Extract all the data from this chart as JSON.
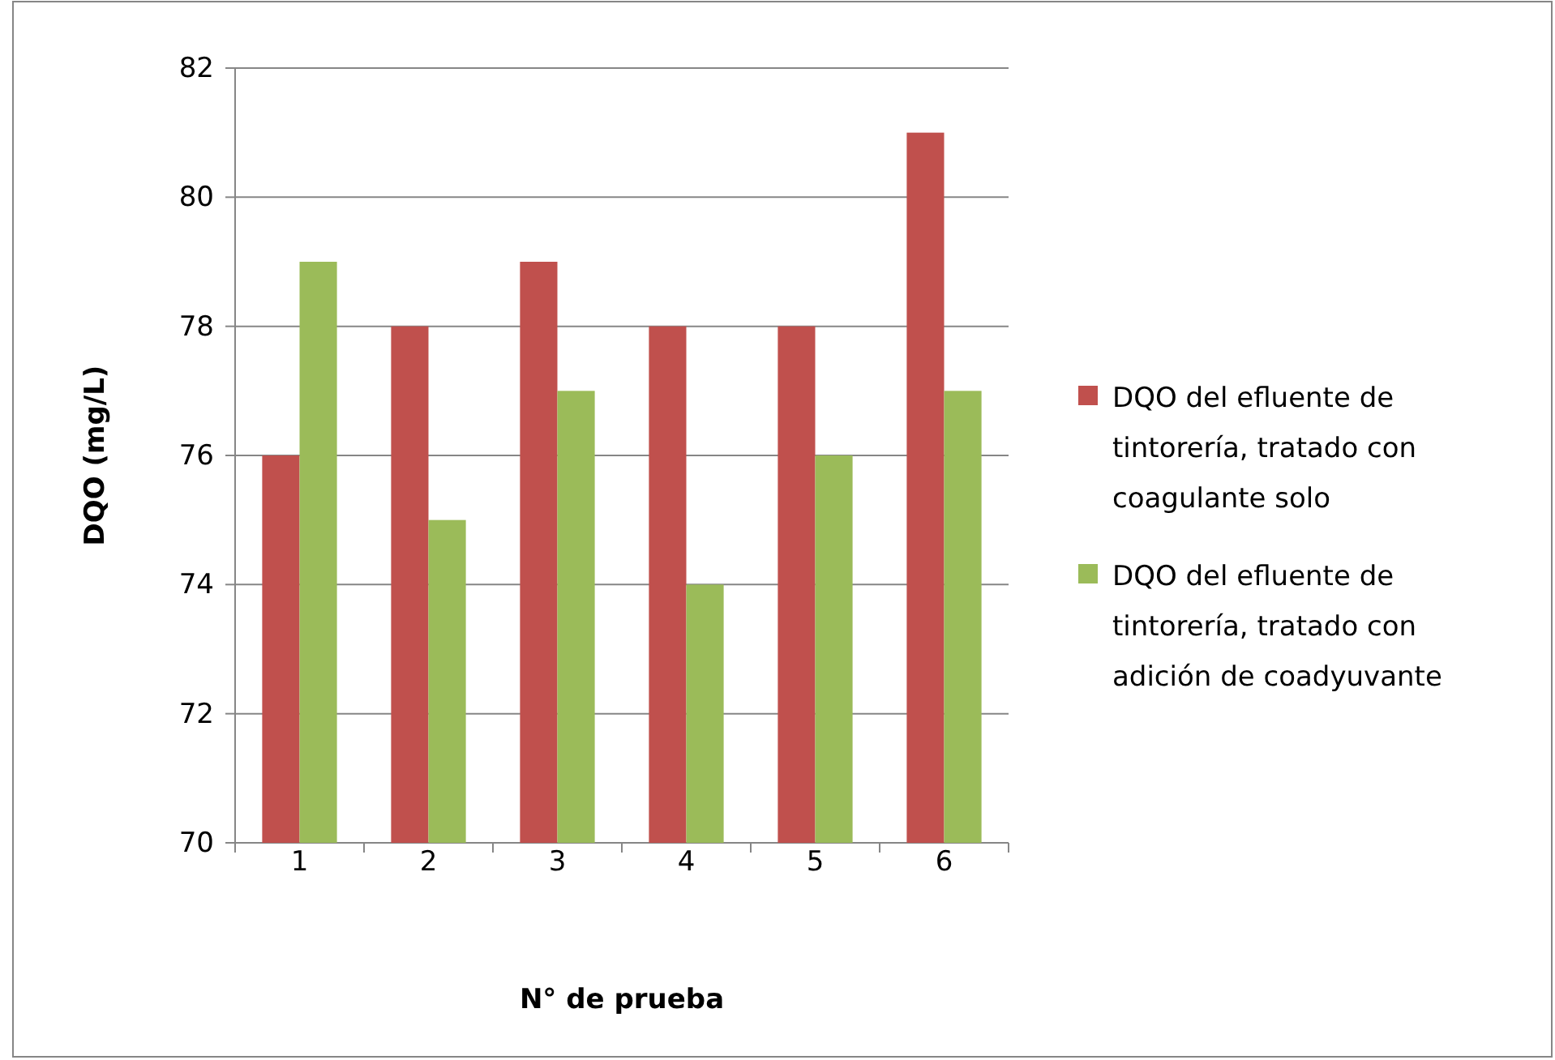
{
  "chart_data": {
    "type": "bar",
    "xlabel": "N° de prueba",
    "ylabel": "DQO (mg/L)",
    "categories": [
      "1",
      "2",
      "3",
      "4",
      "5",
      "6"
    ],
    "series": [
      {
        "name": "DQO del efluente de tintorería, tratado con coagulante solo",
        "color": "#c0504d",
        "values": [
          76,
          78,
          79,
          78,
          78,
          81
        ]
      },
      {
        "name": "DQO del efluente de tintorería, tratado con adición de coadyuvante",
        "color": "#9bbb59",
        "values": [
          79,
          75,
          77,
          74,
          76,
          77
        ]
      }
    ],
    "ylim": [
      70,
      82
    ],
    "yticks": [
      70,
      72,
      74,
      76,
      78,
      80,
      82
    ],
    "grid": "y",
    "legend": "right"
  }
}
